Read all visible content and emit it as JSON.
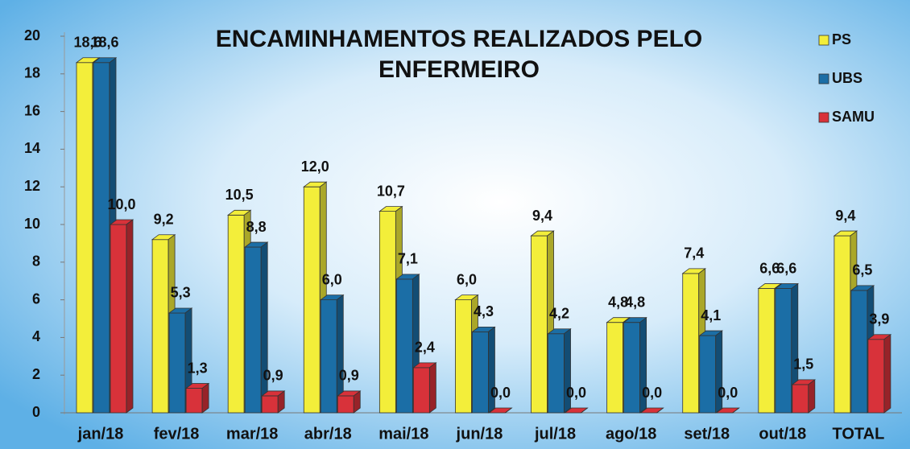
{
  "chart_data": {
    "type": "bar3d",
    "title": "ENCAMINHAMENTOS REALIZADOS PELO ENFERMEIRO",
    "categories": [
      "jan/18",
      "fev/18",
      "mar/18",
      "abr/18",
      "mai/18",
      "jun/18",
      "jul/18",
      "ago/18",
      "set/18",
      "out/18",
      "TOTAL"
    ],
    "series": [
      {
        "name": "PS",
        "color": "#f3ee3a",
        "values": [
          18.6,
          9.2,
          10.5,
          12.0,
          10.7,
          6.0,
          9.4,
          4.8,
          7.4,
          6.6,
          9.4
        ],
        "value_labels": [
          "18,6",
          "9,2",
          "10,5",
          "12,0",
          "10,7",
          "6,0",
          "9,4",
          "4,8",
          "7,4",
          "6,6",
          "9,4"
        ]
      },
      {
        "name": "UBS",
        "color": "#1b6ea6",
        "values": [
          18.6,
          5.3,
          8.8,
          6.0,
          7.1,
          4.3,
          4.2,
          4.8,
          4.1,
          6.6,
          6.5
        ],
        "value_labels": [
          "18,6",
          "5,3",
          "8,8",
          "6,0",
          "7,1",
          "4,3",
          "4,2",
          "4,8",
          "4,1",
          "6,6",
          "6,5"
        ]
      },
      {
        "name": "SAMU",
        "color": "#d8323a",
        "values": [
          10.0,
          1.3,
          0.9,
          0.9,
          2.4,
          0.0,
          0.0,
          0.0,
          0.0,
          1.5,
          3.9
        ],
        "value_labels": [
          "10,0",
          "1,3",
          "0,9",
          "0,9",
          "2,4",
          "0,0",
          "0,0",
          "0,0",
          "0,0",
          "1,5",
          "3,9"
        ]
      }
    ],
    "ylim": [
      0,
      20
    ],
    "yticks": [
      0,
      2,
      4,
      6,
      8,
      10,
      12,
      14,
      16,
      18,
      20
    ],
    "legend": "top-right"
  }
}
